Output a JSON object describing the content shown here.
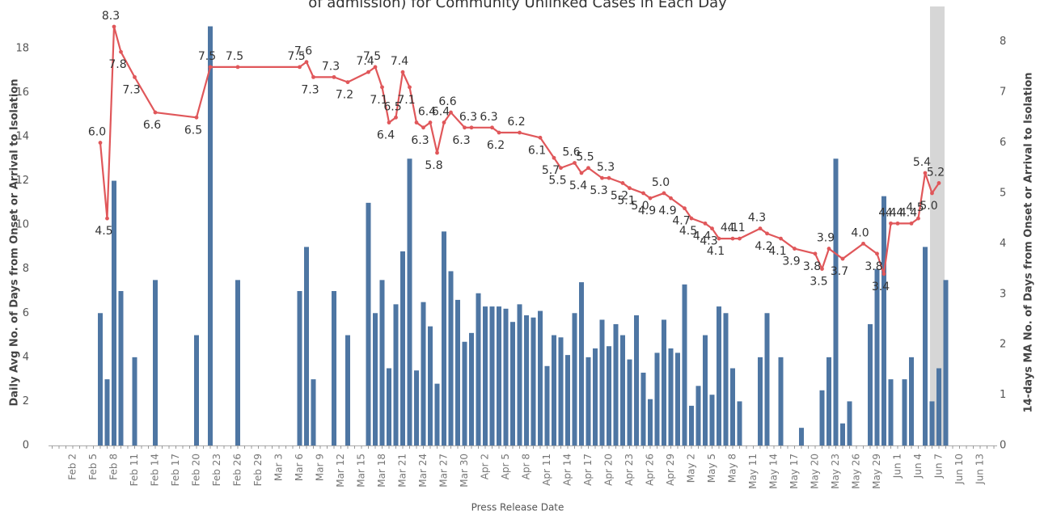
{
  "chart_data": {
    "type": "combo",
    "title": "of admission) for Community Unlinked Cases in Each Day",
    "x_label": "Press Release Date",
    "y_label": "Daily Avg No. of Days from Onset or Arrival to Isolation",
    "y2_label": "14-days MA No. of Days from Onset or Arrival to Isolation",
    "categories": [
      null,
      null,
      null,
      "Feb 2",
      null,
      null,
      "Feb 5",
      null,
      null,
      "Feb 8",
      null,
      null,
      "Feb 11",
      null,
      null,
      "Feb 14",
      null,
      null,
      "Feb 17",
      null,
      null,
      "Feb 20",
      null,
      null,
      "Feb 23",
      null,
      null,
      "Feb 26",
      null,
      null,
      "Feb 29",
      null,
      null,
      "Mar 3",
      null,
      null,
      "Mar 6",
      null,
      null,
      "Mar 9",
      null,
      null,
      "Mar 12",
      null,
      null,
      "Mar 15",
      null,
      null,
      "Mar 18",
      null,
      null,
      "Mar 21",
      null,
      null,
      "Mar 24",
      null,
      null,
      "Mar 27",
      null,
      null,
      "Mar 30",
      null,
      null,
      "Apr 2",
      null,
      null,
      "Apr 5",
      null,
      null,
      "Apr 8",
      null,
      null,
      "Apr 11",
      null,
      null,
      "Apr 14",
      null,
      null,
      "Apr 17",
      null,
      null,
      "Apr 20",
      null,
      null,
      "Apr 23",
      null,
      null,
      "Apr 26",
      null,
      null,
      "Apr 29",
      null,
      null,
      "May 2",
      null,
      null,
      "May 5",
      null,
      null,
      "May 8",
      null,
      null,
      "May 11",
      null,
      null,
      "May 14",
      null,
      null,
      "May 17",
      null,
      null,
      "May 20",
      null,
      null,
      "May 23",
      null,
      null,
      "May 26",
      null,
      null,
      "May 29",
      null,
      null,
      "Jun 1",
      null,
      null,
      "Jun 4",
      null,
      null,
      "Jun 7",
      null,
      null,
      "Jun 10",
      null,
      null,
      "Jun 13",
      null,
      null
    ],
    "series": [
      {
        "type": "bar",
        "color": "#4e76a3",
        "values": [
          null,
          null,
          null,
          null,
          null,
          null,
          null,
          6,
          3,
          12,
          7,
          null,
          4,
          null,
          null,
          7.5,
          null,
          null,
          null,
          null,
          null,
          5,
          null,
          19,
          null,
          null,
          null,
          7.5,
          null,
          null,
          null,
          null,
          null,
          null,
          null,
          null,
          7,
          9,
          3,
          null,
          null,
          7,
          null,
          5,
          null,
          null,
          11,
          6,
          7.5,
          3.5,
          6.4,
          8.8,
          13,
          3.4,
          6.5,
          5.4,
          2.8,
          9.7,
          7.9,
          6.6,
          4.7,
          5.1,
          6.9,
          6.3,
          6.3,
          6.3,
          6.2,
          5.6,
          6.4,
          5.9,
          5.8,
          6.1,
          3.6,
          5,
          4.9,
          4.1,
          6,
          7.4,
          4,
          4.4,
          5.7,
          4.5,
          5.5,
          5,
          3.9,
          5.9,
          3.3,
          2.1,
          4.2,
          5.7,
          4.4,
          4.2,
          7.3,
          1.8,
          2.7,
          5,
          2.3,
          6.3,
          6,
          3.5,
          2,
          null,
          null,
          4,
          6,
          null,
          4,
          null,
          null,
          0.8,
          null,
          null,
          2.5,
          4,
          13,
          1,
          2,
          null,
          null,
          5.5,
          8,
          11.3,
          3,
          null,
          3,
          4,
          null,
          9,
          2,
          3.5,
          7.5,
          null,
          null,
          null,
          null,
          null,
          null,
          null
        ]
      },
      {
        "type": "line",
        "axis": "y2",
        "color": "#e0575a",
        "values": [
          null,
          null,
          null,
          null,
          null,
          null,
          null,
          6,
          4.5,
          8.3,
          7.8,
          null,
          7.3,
          null,
          null,
          6.6,
          null,
          null,
          null,
          null,
          null,
          6.5,
          null,
          7.5,
          null,
          null,
          null,
          7.5,
          null,
          null,
          null,
          null,
          null,
          null,
          null,
          null,
          7.5,
          7.6,
          7.3,
          null,
          null,
          7.3,
          null,
          7.2,
          null,
          null,
          7.4,
          7.5,
          7.1,
          6.4,
          6.5,
          7.4,
          7.1,
          6.4,
          6.3,
          6.4,
          5.8,
          6.4,
          6.6,
          null,
          6.3,
          6.3,
          null,
          null,
          6.3,
          6.2,
          null,
          null,
          6.2,
          null,
          null,
          6.1,
          null,
          5.7,
          5.5,
          null,
          5.6,
          5.4,
          5.5,
          null,
          5.3,
          5.3,
          null,
          5.2,
          5.1,
          null,
          5,
          4.9,
          null,
          5,
          4.9,
          null,
          4.7,
          4.5,
          null,
          4.4,
          4.3,
          4.1,
          null,
          4.1,
          4.1,
          null,
          null,
          4.3,
          4.2,
          null,
          4.1,
          null,
          3.9,
          null,
          null,
          3.8,
          3.5,
          3.9,
          null,
          3.7,
          null,
          null,
          4,
          null,
          3.8,
          3.4,
          4.4,
          4.4,
          null,
          4.4,
          4.5,
          5.4,
          5,
          5.2,
          null,
          null,
          null,
          null,
          null,
          null,
          null,
          null
        ],
        "value_labels": [
          null,
          null,
          null,
          null,
          null,
          null,
          null,
          "6.0",
          "4.5",
          "8.3",
          "7.8",
          null,
          "7.3",
          null,
          null,
          "6.6",
          null,
          null,
          null,
          null,
          null,
          "6.5",
          null,
          "7.5",
          null,
          null,
          null,
          "7.5",
          null,
          null,
          null,
          null,
          null,
          null,
          null,
          null,
          "7.5",
          "7.6",
          "7.3",
          null,
          null,
          "7.3",
          null,
          "7.2",
          null,
          null,
          "7.4",
          "7.5",
          "7.1",
          "6.4",
          "6.5",
          "7.4",
          "7.1",
          null,
          "6.3",
          "6.4",
          "5.8",
          "6.4",
          "6.6",
          null,
          "6.3",
          "6.3",
          null,
          null,
          "6.3",
          "6.2",
          null,
          null,
          "6.2",
          null,
          null,
          "6.1",
          null,
          "5.7",
          "5.5",
          null,
          "5.6",
          "5.4",
          "5.5",
          null,
          "5.3",
          "5.3",
          null,
          "5.2",
          "5.1",
          null,
          "5.0",
          "4.9",
          null,
          "5.0",
          "4.9",
          null,
          "4.7",
          "4.5",
          null,
          "4.4",
          "4.3",
          "4.1",
          null,
          "4.1",
          "4.1",
          null,
          null,
          "4.3",
          "4.2",
          null,
          "4.1",
          null,
          "3.9",
          null,
          null,
          "3.8",
          "3.5",
          "3.9",
          null,
          "3.7",
          null,
          null,
          "4.0",
          null,
          "3.8",
          "3.4",
          "4.4",
          "4.4",
          null,
          "4.4",
          "4.5",
          "5.4",
          "5.0",
          "5.2",
          null,
          null,
          null,
          null,
          null,
          null,
          null,
          null
        ]
      }
    ],
    "ylim": [
      0,
      19.9
    ],
    "yticks": [
      0,
      2,
      4,
      6,
      8,
      10,
      12,
      14,
      16,
      18
    ],
    "y2lim": [
      0,
      8.7
    ],
    "y2ticks": [
      0,
      1,
      2,
      3,
      4,
      5,
      6,
      7,
      8
    ],
    "grid": false
  }
}
